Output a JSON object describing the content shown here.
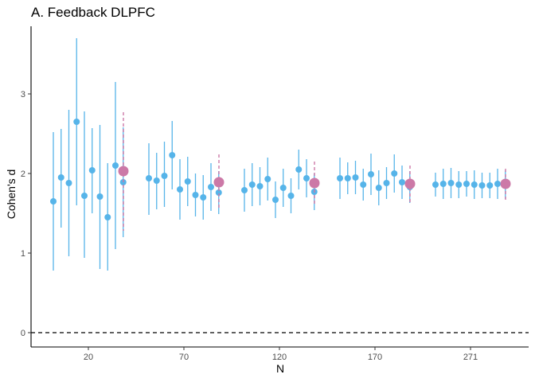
{
  "chart_data": {
    "type": "scatter",
    "title": "A. Feedback DLPFC",
    "xlabel": "N",
    "ylabel": "Cohen's d",
    "x_ticks": [
      "20",
      "70",
      "120",
      "170",
      "271"
    ],
    "y_ticks": [
      0,
      1,
      2,
      3
    ],
    "ylim": [
      -0.18,
      3.85
    ],
    "reference_line": {
      "y": 0,
      "style": "dashed"
    },
    "grid": false,
    "colors": {
      "sample": "#56b4e9",
      "summary": "#cc79a7",
      "reference": "#000000"
    },
    "groups": [
      {
        "n": "20",
        "samples": [
          {
            "d": 1.65,
            "lo": 0.78,
            "hi": 2.52
          },
          {
            "d": 1.95,
            "lo": 1.32,
            "hi": 2.56
          },
          {
            "d": 1.88,
            "lo": 0.96,
            "hi": 2.8
          },
          {
            "d": 2.65,
            "lo": 1.6,
            "hi": 3.7
          },
          {
            "d": 1.72,
            "lo": 0.94,
            "hi": 2.78
          },
          {
            "d": 2.04,
            "lo": 1.5,
            "hi": 2.57
          },
          {
            "d": 1.71,
            "lo": 0.8,
            "hi": 2.61
          },
          {
            "d": 1.45,
            "lo": 0.78,
            "hi": 2.13
          },
          {
            "d": 2.1,
            "lo": 1.05,
            "hi": 3.15
          },
          {
            "d": 1.89,
            "lo": 1.2,
            "hi": 2.58
          }
        ],
        "summary": {
          "d": 2.03,
          "lo": 1.28,
          "hi": 2.77
        }
      },
      {
        "n": "70",
        "samples": [
          {
            "d": 1.94,
            "lo": 1.48,
            "hi": 2.38
          },
          {
            "d": 1.91,
            "lo": 1.55,
            "hi": 2.26
          },
          {
            "d": 1.97,
            "lo": 1.58,
            "hi": 2.4
          },
          {
            "d": 2.23,
            "lo": 1.8,
            "hi": 2.66
          },
          {
            "d": 1.8,
            "lo": 1.42,
            "hi": 2.18
          },
          {
            "d": 1.9,
            "lo": 1.59,
            "hi": 2.21
          },
          {
            "d": 1.73,
            "lo": 1.46,
            "hi": 2.0
          },
          {
            "d": 1.7,
            "lo": 1.42,
            "hi": 1.98
          },
          {
            "d": 1.83,
            "lo": 1.53,
            "hi": 2.13
          },
          {
            "d": 1.76,
            "lo": 1.49,
            "hi": 2.03
          }
        ],
        "summary": {
          "d": 1.89,
          "lo": 1.54,
          "hi": 2.24
        }
      },
      {
        "n": "120",
        "samples": [
          {
            "d": 1.79,
            "lo": 1.52,
            "hi": 2.06
          },
          {
            "d": 1.86,
            "lo": 1.59,
            "hi": 2.13
          },
          {
            "d": 1.84,
            "lo": 1.6,
            "hi": 2.08
          },
          {
            "d": 1.93,
            "lo": 1.66,
            "hi": 2.2
          },
          {
            "d": 1.67,
            "lo": 1.44,
            "hi": 1.9
          },
          {
            "d": 1.82,
            "lo": 1.58,
            "hi": 2.06
          },
          {
            "d": 1.72,
            "lo": 1.5,
            "hi": 1.94
          },
          {
            "d": 2.05,
            "lo": 1.8,
            "hi": 2.3
          },
          {
            "d": 1.94,
            "lo": 1.7,
            "hi": 2.18
          },
          {
            "d": 1.77,
            "lo": 1.54,
            "hi": 2.0
          }
        ],
        "summary": {
          "d": 1.88,
          "lo": 1.61,
          "hi": 2.15
        }
      },
      {
        "n": "170",
        "samples": [
          {
            "d": 1.94,
            "lo": 1.68,
            "hi": 2.2
          },
          {
            "d": 1.94,
            "lo": 1.74,
            "hi": 2.14
          },
          {
            "d": 1.95,
            "lo": 1.74,
            "hi": 2.16
          },
          {
            "d": 1.86,
            "lo": 1.66,
            "hi": 2.06
          },
          {
            "d": 1.99,
            "lo": 1.73,
            "hi": 2.25
          },
          {
            "d": 1.82,
            "lo": 1.6,
            "hi": 2.04
          },
          {
            "d": 1.88,
            "lo": 1.68,
            "hi": 2.08
          },
          {
            "d": 2.0,
            "lo": 1.76,
            "hi": 2.24
          },
          {
            "d": 1.89,
            "lo": 1.68,
            "hi": 2.1
          },
          {
            "d": 1.83,
            "lo": 1.63,
            "hi": 2.03
          }
        ],
        "summary": {
          "d": 1.87,
          "lo": 1.63,
          "hi": 2.1
        }
      },
      {
        "n": "271",
        "samples": [
          {
            "d": 1.86,
            "lo": 1.71,
            "hi": 2.01
          },
          {
            "d": 1.87,
            "lo": 1.68,
            "hi": 2.06
          },
          {
            "d": 1.88,
            "lo": 1.69,
            "hi": 2.07
          },
          {
            "d": 1.86,
            "lo": 1.69,
            "hi": 2.03
          },
          {
            "d": 1.87,
            "lo": 1.71,
            "hi": 2.03
          },
          {
            "d": 1.86,
            "lo": 1.68,
            "hi": 2.04
          },
          {
            "d": 1.85,
            "lo": 1.69,
            "hi": 2.01
          },
          {
            "d": 1.85,
            "lo": 1.69,
            "hi": 2.01
          },
          {
            "d": 1.87,
            "lo": 1.68,
            "hi": 2.06
          },
          {
            "d": 1.86,
            "lo": 1.68,
            "hi": 2.04
          }
        ],
        "summary": {
          "d": 1.87,
          "lo": 1.67,
          "hi": 2.06
        }
      }
    ]
  }
}
